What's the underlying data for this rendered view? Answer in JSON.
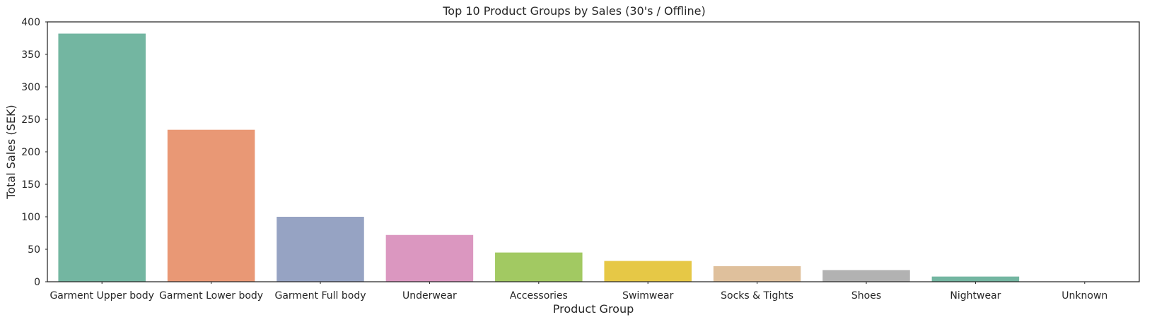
{
  "chart_data": {
    "type": "bar",
    "title": "Top 10 Product Groups by Sales (30's / Offline)",
    "xlabel": "Product Group",
    "ylabel": "Total Sales (SEK)",
    "ylim": [
      0,
      400
    ],
    "yticks": [
      "0",
      "50",
      "100",
      "150",
      "200",
      "250",
      "300",
      "350",
      "400"
    ],
    "grid": false,
    "categories": [
      "Garment Upper body",
      "Garment Lower body",
      "Garment Full body",
      "Underwear",
      "Accessories",
      "Swimwear",
      "Socks & Tights",
      "Shoes",
      "Nightwear",
      "Unknown"
    ],
    "values": [
      382,
      234,
      100,
      72,
      45,
      32,
      24,
      18,
      8,
      0.5
    ],
    "colors": [
      "#73b6a1",
      "#e99875",
      "#96a3c3",
      "#db97c0",
      "#a2c962",
      "#e6c846",
      "#dfc09c",
      "#b2b2b2",
      "#73b6a1",
      "#e99875"
    ]
  }
}
